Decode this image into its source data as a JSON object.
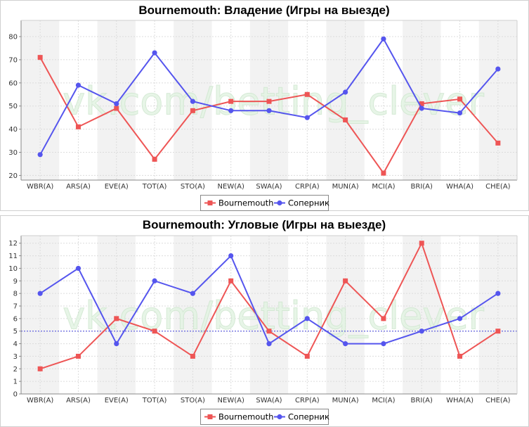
{
  "watermark": "vk.com/betting_clever",
  "chart_data": [
    {
      "type": "line",
      "title": "Bournemouth: Владение (Игры на выезде)",
      "categories": [
        "WBR(A)",
        "ARS(A)",
        "EVE(A)",
        "TOT(A)",
        "STO(A)",
        "NEW(A)",
        "SWA(A)",
        "CRP(A)",
        "MUN(A)",
        "MCI(A)",
        "BRI(A)",
        "WHA(A)",
        "CHE(A)"
      ],
      "ylim": [
        18,
        87
      ],
      "yticks": [
        20,
        30,
        40,
        50,
        60,
        70,
        80
      ],
      "grid": true,
      "legend": "bottom-center",
      "series": [
        {
          "name": "Bournemouth",
          "color": "#ee5555",
          "marker": "square",
          "values": [
            71,
            41,
            49,
            27,
            48,
            52,
            52,
            55,
            44,
            21,
            51,
            53,
            34
          ]
        },
        {
          "name": "Соперник",
          "color": "#5555ee",
          "marker": "circle",
          "values": [
            29,
            59,
            51,
            73,
            52,
            48,
            48,
            45,
            56,
            79,
            49,
            47,
            66
          ]
        }
      ]
    },
    {
      "type": "line",
      "title": "Bournemouth: Угловые (Игры на выезде)",
      "categories": [
        "WBR(A)",
        "ARS(A)",
        "EVE(A)",
        "TOT(A)",
        "STO(A)",
        "NEW(A)",
        "SWA(A)",
        "CRP(A)",
        "MUN(A)",
        "MCI(A)",
        "BRI(A)",
        "WHA(A)",
        "CHE(A)"
      ],
      "ylim": [
        0,
        12.6
      ],
      "yticks": [
        0,
        1,
        2,
        3,
        4,
        5,
        6,
        7,
        8,
        9,
        10,
        11,
        12
      ],
      "grid": true,
      "reference_line": 5,
      "legend": "bottom-center",
      "series": [
        {
          "name": "Bournemouth",
          "color": "#ee5555",
          "marker": "square",
          "values": [
            2,
            3,
            6,
            5,
            3,
            9,
            5,
            3,
            9,
            6,
            12,
            3,
            5
          ]
        },
        {
          "name": "Соперник",
          "color": "#5555ee",
          "marker": "circle",
          "values": [
            8,
            10,
            4,
            9,
            8,
            11,
            4,
            6,
            4,
            4,
            5,
            6,
            8
          ]
        }
      ]
    }
  ]
}
